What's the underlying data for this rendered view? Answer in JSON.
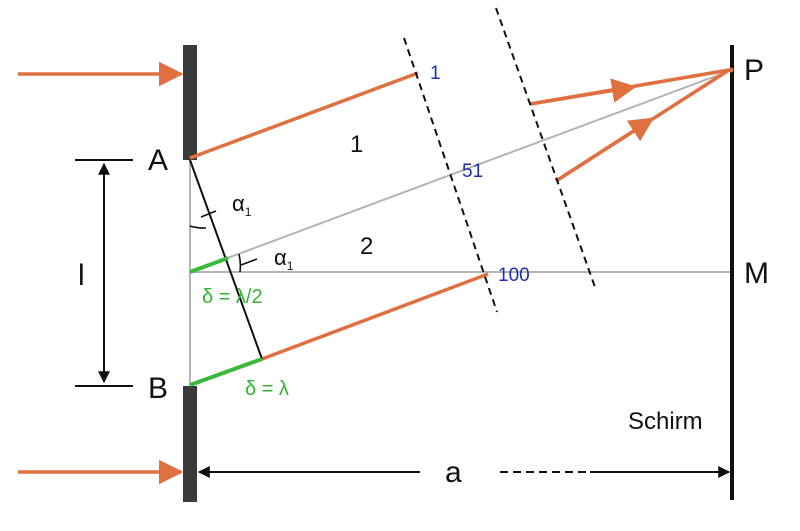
{
  "labels": {
    "point_a": "A",
    "point_b": "B",
    "point_p": "P",
    "point_m": "M",
    "slit_width": "l",
    "distance": "a",
    "screen": "Schirm",
    "zone_1": "1",
    "zone_2": "2",
    "alpha": "α",
    "alpha_sub": "1",
    "delta_half": "δ = λ/2",
    "delta_full": "δ = λ",
    "ray_1": "1",
    "ray_51": "51",
    "ray_100": "100"
  },
  "colors": {
    "ray": "#e07040",
    "path_difference": "#3cb83c",
    "construction": "#b4b4b4",
    "ray_index": "#1f2fb0",
    "line": "#111111",
    "wall": "#3a3a3a"
  }
}
